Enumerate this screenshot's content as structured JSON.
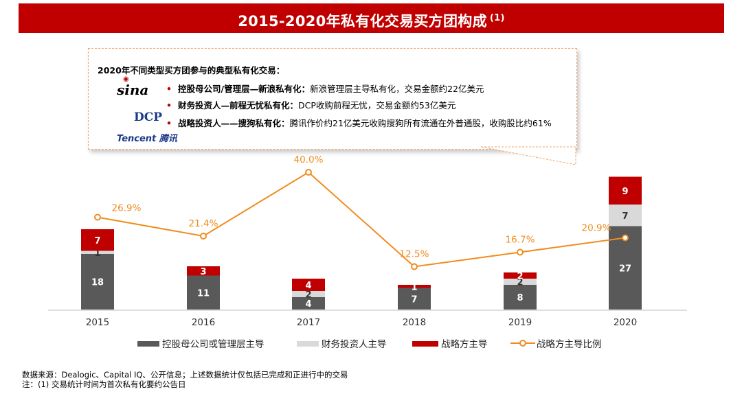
{
  "title": {
    "text": "2015-2020年私有化交易买方团构成",
    "note": "(1)"
  },
  "callout": {
    "heading": "2020年不同类型买方团参与的典型私有化交易：",
    "logos": {
      "sina": "sina",
      "sina_mark": "◉",
      "dcp": "DCP",
      "tencent": "Tencent 腾讯"
    },
    "bullets": [
      {
        "bold": "控股母公司/管理层—新浪私有化：",
        "text": "新浪管理层主导私有化，交易金额约22亿美元"
      },
      {
        "bold": "财务投资人—前程无忧私有化：",
        "text": "DCP收购前程无忧，交易金额约53亿美元"
      },
      {
        "bold": "战略投资人——搜狗私有化：",
        "text": "腾讯作价约21亿美元收购搜狗所有流通在外普通股，收购股比约61%"
      }
    ],
    "bullet_symbol": "•"
  },
  "chart_data": {
    "type": "bar",
    "stacked": true,
    "categories": [
      "2015",
      "2016",
      "2017",
      "2018",
      "2019",
      "2020"
    ],
    "series": [
      {
        "name": "控股母公司或管理层主导",
        "color": "#595959",
        "values": [
          18,
          11,
          4,
          7,
          8,
          27
        ],
        "labels": [
          "18",
          "11",
          "4",
          "7",
          "8",
          "27"
        ]
      },
      {
        "name": "财务投资人主导",
        "color": "#d9d9d9",
        "values": [
          1,
          0,
          2,
          0,
          2,
          7
        ],
        "labels": [
          "1",
          "",
          "2",
          "",
          "2",
          "7"
        ]
      },
      {
        "name": "战略方主导",
        "color": "#c00000",
        "values": [
          7,
          3,
          4,
          1,
          2,
          9
        ],
        "labels": [
          "7",
          "3",
          "4",
          "1",
          "2",
          "9"
        ]
      }
    ],
    "line": {
      "name": "战略方主导比例",
      "color": "#f08c1e",
      "values": [
        26.9,
        21.4,
        40.0,
        12.5,
        16.7,
        20.9
      ],
      "labels": [
        "26.9%",
        "21.4%",
        "40.0%",
        "12.5%",
        "16.7%",
        "20.9%"
      ],
      "ylim": [
        0,
        50
      ]
    },
    "ylim": [
      0,
      43
    ]
  },
  "footnotes": {
    "source": "数据来源：Dealogic、Capital IQ、公开信息；上述数据统计仅包括已完成和正进行中的交易",
    "note": "注：(1) 交易统计时间为首次私有化要约公告日"
  }
}
